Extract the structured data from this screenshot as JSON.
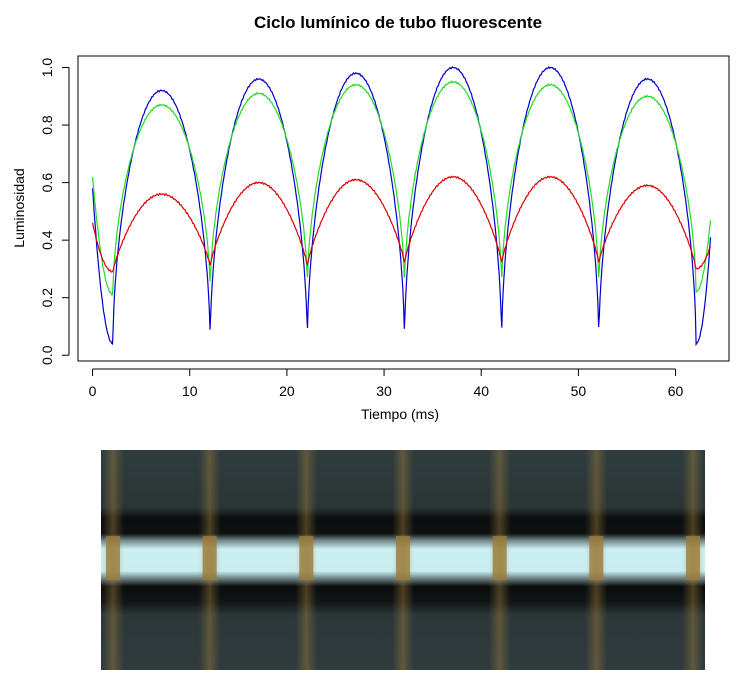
{
  "chart_data": {
    "type": "line",
    "title": "Ciclo lumínico de tubo fluorescente",
    "xlabel": "Tiempo (ms)",
    "ylabel": "Luminosidad",
    "xlim": [
      -1.5,
      65.5
    ],
    "ylim": [
      -0.02,
      1.04
    ],
    "x_ticks": [
      0,
      10,
      20,
      30,
      40,
      50,
      60
    ],
    "y_ticks": [
      0.0,
      0.2,
      0.4,
      0.6,
      0.8,
      1.0
    ],
    "y_tick_labels": [
      "0.0",
      "0.2",
      "0.4",
      "0.6",
      "0.8",
      "1.0"
    ],
    "grid": false,
    "x_range": [
      0,
      63.6
    ],
    "period_ms": 10,
    "first_minimum_ms": 2.1,
    "series": [
      {
        "color": "#0000cc",
        "start_value": 0.58,
        "end_value": 0.41,
        "minima": [
          0.04,
          0.04,
          0.04,
          0.04,
          0.04,
          0.04,
          0.04
        ],
        "maxima": [
          0.92,
          0.96,
          0.98,
          1.0,
          1.0,
          0.96
        ]
      },
      {
        "color": "#22dd22",
        "start_value": 0.62,
        "end_value": 0.47,
        "minima": [
          0.21,
          0.22,
          0.23,
          0.23,
          0.23,
          0.23,
          0.22
        ],
        "maxima": [
          0.87,
          0.91,
          0.94,
          0.95,
          0.94,
          0.9
        ]
      },
      {
        "color": "#dd0000",
        "start_value": 0.46,
        "end_value": 0.38,
        "minima": [
          0.29,
          0.31,
          0.31,
          0.32,
          0.32,
          0.32,
          0.3
        ],
        "maxima": [
          0.56,
          0.6,
          0.61,
          0.62,
          0.62,
          0.59
        ]
      }
    ]
  },
  "photo": {
    "background_color": "#2b3a3c",
    "stripe_light_color": "#cbeff2",
    "stripe_dark_color": "#0b0e0e",
    "band_color": "#9a7a3a",
    "band_count": 7
  }
}
